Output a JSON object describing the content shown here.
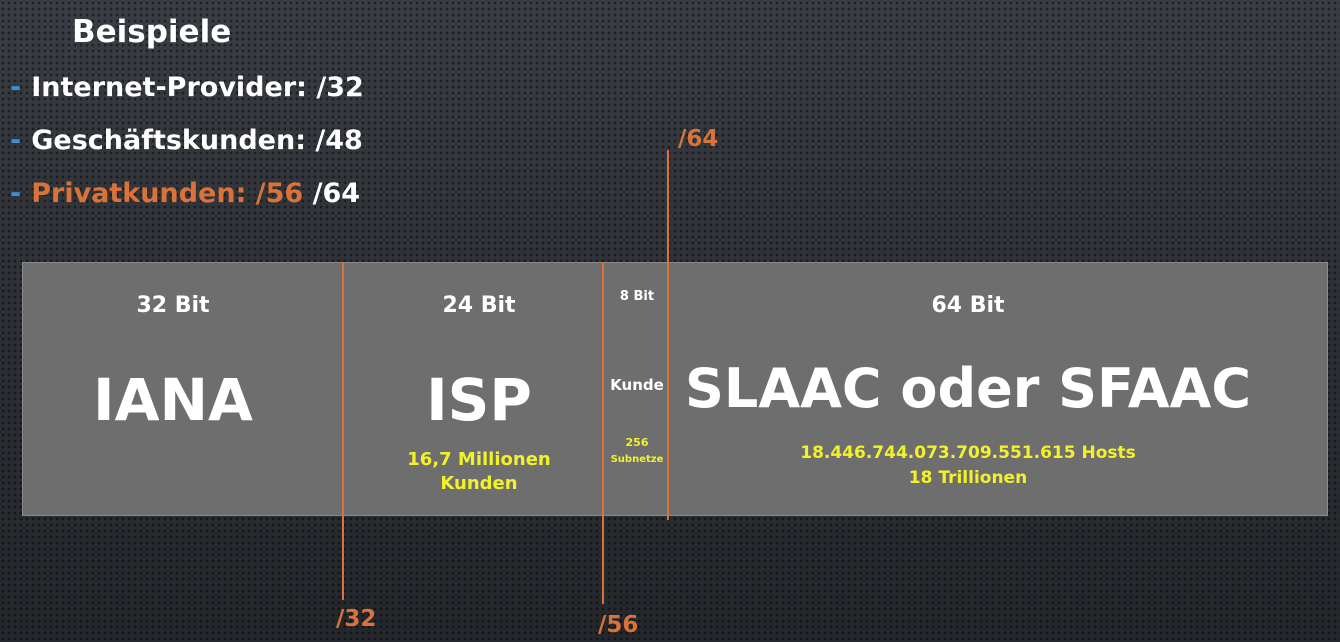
{
  "heading": "Beispiele",
  "bullets": {
    "dash": "-",
    "isp_label": "Internet-Provider: /32",
    "business_label": "Geschäftskunden: /48",
    "private_highlight": "Privatkunden: /56",
    "private_rest": " /64"
  },
  "segments": {
    "iana": {
      "bits": "32 Bit",
      "name": "IANA"
    },
    "isp": {
      "bits": "24 Bit",
      "name": "ISP",
      "note_line1": "16,7 Millionen",
      "note_line2": "Kunden"
    },
    "customer": {
      "bits": "8 Bit",
      "name": "Kunde",
      "note_line1": "256",
      "note_line2": "Subnetze"
    },
    "slaac": {
      "bits": "64 Bit",
      "name": "SLAAC oder SFAAC",
      "note_line1": "18.446.744.073.709.551.615 Hosts",
      "note_line2": "18 Trillionen"
    }
  },
  "boundaries": {
    "p32": "/32",
    "p56": "/56",
    "p64": "/64"
  },
  "colors": {
    "accent": "#d9733a",
    "highlight_text": "#f2f22a",
    "band": "#6e6e6e",
    "bullet_dash": "#3b8fd6"
  }
}
